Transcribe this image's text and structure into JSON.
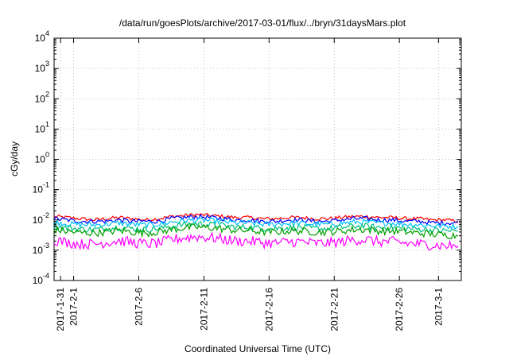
{
  "chart_data": {
    "type": "line",
    "title": "/data/run/goesPlots/archive/2017-03-01/flux/../bryn/31daysMars.plot",
    "xlabel": "Coordinated Universal Time (UTC)",
    "ylabel": "cGy/day",
    "yscale": "log",
    "ylim": [
      0.0001,
      10000
    ],
    "y_tick_exponents": [
      "-4",
      "-3",
      "-2",
      "-1",
      "0",
      "1",
      "2",
      "3",
      "4"
    ],
    "y_tick_base": "10",
    "x_range": [
      "2017-01-30T12:00",
      "2017-03-02T18:00"
    ],
    "x_ticks": [
      "2017-1-31",
      "2017-2-1",
      "2017-2-6",
      "2017-2-11",
      "2017-2-16",
      "2017-2-21",
      "2017-2-26",
      "2017-3-1"
    ],
    "grid": true,
    "legend": "none",
    "series": [
      {
        "color": "#ff0000",
        "values": [
          0.013,
          0.012,
          0.011,
          0.01,
          0.011,
          0.012,
          0.011,
          0.01,
          0.011,
          0.013,
          0.014,
          0.015,
          0.014,
          0.013,
          0.012,
          0.012,
          0.011,
          0.011,
          0.012,
          0.012,
          0.011,
          0.011,
          0.012,
          0.013,
          0.013,
          0.012,
          0.012,
          0.011,
          0.011,
          0.01,
          0.01,
          0.009
        ]
      },
      {
        "color": "#0000ff",
        "values": [
          0.011,
          0.01,
          0.009,
          0.009,
          0.009,
          0.01,
          0.009,
          0.009,
          0.009,
          0.011,
          0.012,
          0.013,
          0.012,
          0.011,
          0.01,
          0.01,
          0.009,
          0.009,
          0.01,
          0.01,
          0.009,
          0.009,
          0.01,
          0.011,
          0.011,
          0.01,
          0.01,
          0.009,
          0.009,
          0.008,
          0.008,
          0.008
        ]
      },
      {
        "color": "#00c0ff",
        "values": [
          0.0085,
          0.0075,
          0.007,
          0.0068,
          0.0072,
          0.008,
          0.0072,
          0.0068,
          0.0072,
          0.0085,
          0.0095,
          0.01,
          0.0095,
          0.0088,
          0.008,
          0.008,
          0.0072,
          0.0072,
          0.0078,
          0.0078,
          0.0072,
          0.0072,
          0.0078,
          0.0085,
          0.0085,
          0.0078,
          0.0078,
          0.0072,
          0.007,
          0.0065,
          0.0062,
          0.006
        ]
      },
      {
        "color": "#00c080",
        "values": [
          0.0062,
          0.0055,
          0.005,
          0.0048,
          0.0052,
          0.0058,
          0.0052,
          0.0048,
          0.0052,
          0.0062,
          0.007,
          0.0075,
          0.007,
          0.0065,
          0.0058,
          0.0058,
          0.0052,
          0.0052,
          0.0056,
          0.0056,
          0.0052,
          0.0052,
          0.0056,
          0.0062,
          0.0062,
          0.0056,
          0.0056,
          0.0052,
          0.005,
          0.0046,
          0.0044,
          0.0042
        ]
      },
      {
        "color": "#00a000",
        "values": [
          0.0048,
          0.0042,
          0.0038,
          0.0037,
          0.004,
          0.0045,
          0.004,
          0.0037,
          0.004,
          0.0048,
          0.0055,
          0.0058,
          0.0055,
          0.005,
          0.0045,
          0.0045,
          0.004,
          0.004,
          0.0043,
          0.0043,
          0.004,
          0.004,
          0.0043,
          0.0048,
          0.0048,
          0.0043,
          0.0043,
          0.004,
          0.0037,
          0.0034,
          0.0032,
          0.003
        ]
      },
      {
        "color": "#ff00ff",
        "values": [
          0.0022,
          0.0018,
          0.0016,
          0.0016,
          0.0018,
          0.0021,
          0.0018,
          0.0016,
          0.0017,
          0.0022,
          0.0026,
          0.0028,
          0.0026,
          0.0023,
          0.002,
          0.002,
          0.0018,
          0.0017,
          0.0019,
          0.0019,
          0.0017,
          0.0017,
          0.0019,
          0.0022,
          0.0022,
          0.0019,
          0.0019,
          0.0017,
          0.0016,
          0.0015,
          0.0014,
          0.0014
        ]
      }
    ]
  }
}
